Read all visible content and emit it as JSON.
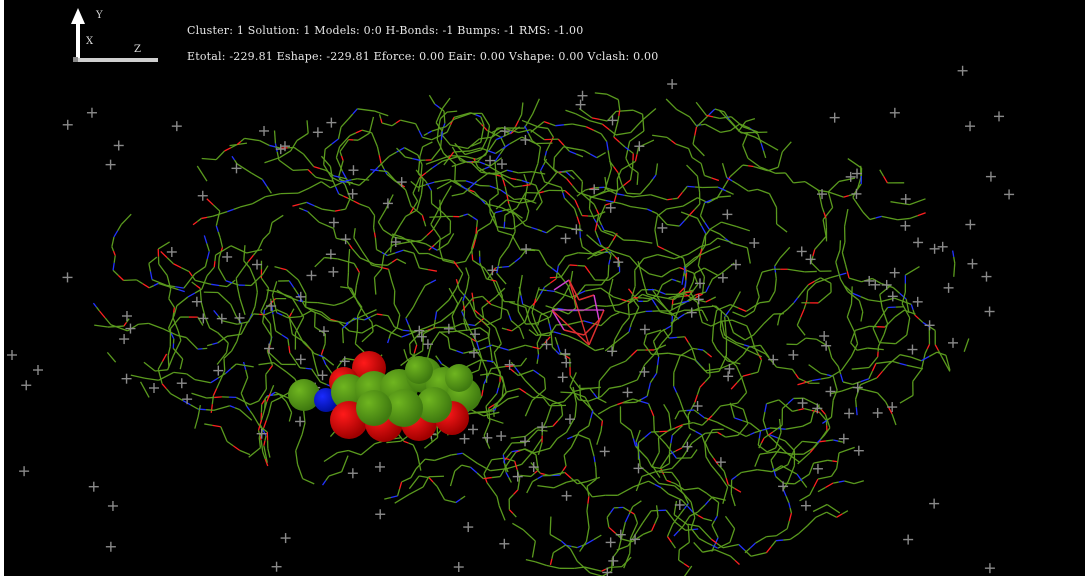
{
  "hud": {
    "line1": "Cluster: 1 Solution: 1 Models: 0:0 H-Bonds: -1 Bumps: -1 RMS: -1.00",
    "line2": "Etotal: -229.81 Eshape: -229.81 Eforce: 0.00 Eair: 0.00 Vshape: 0.00 Vclash: 0.00"
  },
  "axes": {
    "y_label": "Y",
    "x_label": "X",
    "z_label": "Z"
  },
  "colors": {
    "background": "#000000",
    "bond_carbon": "#5a9a1e",
    "bond_nitrogen": "#2233ff",
    "bond_oxygen": "#ff2020",
    "water_marker": "#8a8a8a",
    "ligand_carbon": "#6fb520",
    "ligand_oxygen": "#ff1a1a",
    "ligand_nitrogen": "#1a2aff",
    "active_site_red": "#e03030",
    "active_site_magenta": "#d040d0"
  },
  "icons": {
    "axis_triad": "xyz-axis-triad-icon"
  }
}
